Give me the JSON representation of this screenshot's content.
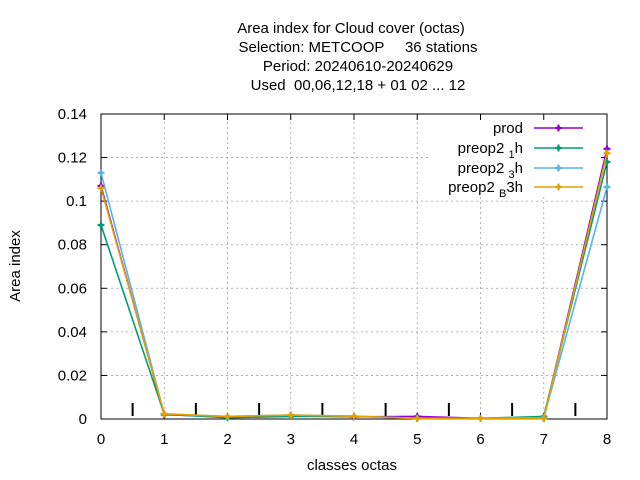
{
  "chart_data": {
    "type": "line",
    "title_lines": [
      "Area index  for Cloud cover (octas)",
      "Selection: METCOOP     36 stations",
      "Period: 20240610-20240629",
      "Used  00,06,12,18 + 01 02 ... 12"
    ],
    "xlabel": "classes octas",
    "ylabel": "Area index",
    "xlim": [
      0,
      8
    ],
    "ylim": [
      0,
      0.14
    ],
    "x_ticks": [
      "0",
      "1",
      "2",
      "3",
      "4",
      "5",
      "6",
      "7",
      "8"
    ],
    "y_ticks": [
      "0",
      "0.02",
      "0.04",
      "0.06",
      "0.08",
      "0.1",
      "0.12",
      "0.14"
    ],
    "grid": true,
    "legend_position": "top-right",
    "class_boundary_ticks": [
      0.5,
      1.5,
      2.5,
      3.5,
      4.5,
      5.5,
      6.5,
      7.5
    ],
    "x": [
      0,
      1,
      2,
      3,
      4,
      5,
      6,
      7,
      8
    ],
    "series": [
      {
        "name": "prod",
        "color": "#9400d3",
        "values": [
          0.107,
          0.002,
          0.001,
          0.0015,
          0.001,
          0.0012,
          0.0003,
          0.0005,
          0.124
        ]
      },
      {
        "name": "preop2_1h",
        "color": "#009e73",
        "values": [
          0.089,
          0.0022,
          0.0006,
          0.0012,
          0.0012,
          0.0003,
          0.0003,
          0.0012,
          0.118
        ]
      },
      {
        "name": "preop2_3h",
        "color": "#56b4e9",
        "values": [
          0.113,
          0.0023,
          0.0012,
          0.0018,
          0.0013,
          0.0003,
          0.0004,
          0.0006,
          0.1065
        ]
      },
      {
        "name": "preop2_B3h",
        "color": "#e69f00",
        "values": [
          0.106,
          0.0024,
          0.0012,
          0.0018,
          0.0013,
          0.0002,
          0.0002,
          0.0002,
          0.122
        ]
      }
    ]
  }
}
